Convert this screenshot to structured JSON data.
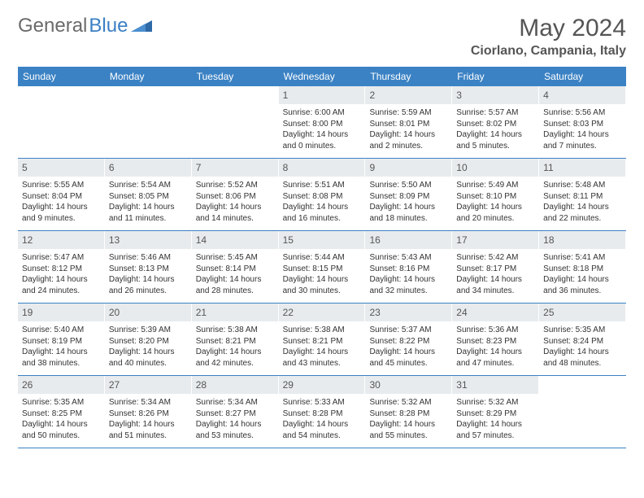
{
  "logo": {
    "text_gray": "General",
    "text_blue": "Blue"
  },
  "title": "May 2024",
  "location": "Ciorlano, Campania, Italy",
  "colors": {
    "header_bg": "#3b82c4",
    "header_text": "#ffffff",
    "daynum_bg": "#e8ebed",
    "border": "#3b82c4",
    "logo_gray": "#6b6b6b",
    "logo_blue": "#3b7fc4"
  },
  "dow": [
    "Sunday",
    "Monday",
    "Tuesday",
    "Wednesday",
    "Thursday",
    "Friday",
    "Saturday"
  ],
  "weeks": [
    [
      {
        "n": "",
        "sr": "",
        "ss": "",
        "dl": ""
      },
      {
        "n": "",
        "sr": "",
        "ss": "",
        "dl": ""
      },
      {
        "n": "",
        "sr": "",
        "ss": "",
        "dl": ""
      },
      {
        "n": "1",
        "sr": "Sunrise: 6:00 AM",
        "ss": "Sunset: 8:00 PM",
        "dl": "Daylight: 14 hours and 0 minutes."
      },
      {
        "n": "2",
        "sr": "Sunrise: 5:59 AM",
        "ss": "Sunset: 8:01 PM",
        "dl": "Daylight: 14 hours and 2 minutes."
      },
      {
        "n": "3",
        "sr": "Sunrise: 5:57 AM",
        "ss": "Sunset: 8:02 PM",
        "dl": "Daylight: 14 hours and 5 minutes."
      },
      {
        "n": "4",
        "sr": "Sunrise: 5:56 AM",
        "ss": "Sunset: 8:03 PM",
        "dl": "Daylight: 14 hours and 7 minutes."
      }
    ],
    [
      {
        "n": "5",
        "sr": "Sunrise: 5:55 AM",
        "ss": "Sunset: 8:04 PM",
        "dl": "Daylight: 14 hours and 9 minutes."
      },
      {
        "n": "6",
        "sr": "Sunrise: 5:54 AM",
        "ss": "Sunset: 8:05 PM",
        "dl": "Daylight: 14 hours and 11 minutes."
      },
      {
        "n": "7",
        "sr": "Sunrise: 5:52 AM",
        "ss": "Sunset: 8:06 PM",
        "dl": "Daylight: 14 hours and 14 minutes."
      },
      {
        "n": "8",
        "sr": "Sunrise: 5:51 AM",
        "ss": "Sunset: 8:08 PM",
        "dl": "Daylight: 14 hours and 16 minutes."
      },
      {
        "n": "9",
        "sr": "Sunrise: 5:50 AM",
        "ss": "Sunset: 8:09 PM",
        "dl": "Daylight: 14 hours and 18 minutes."
      },
      {
        "n": "10",
        "sr": "Sunrise: 5:49 AM",
        "ss": "Sunset: 8:10 PM",
        "dl": "Daylight: 14 hours and 20 minutes."
      },
      {
        "n": "11",
        "sr": "Sunrise: 5:48 AM",
        "ss": "Sunset: 8:11 PM",
        "dl": "Daylight: 14 hours and 22 minutes."
      }
    ],
    [
      {
        "n": "12",
        "sr": "Sunrise: 5:47 AM",
        "ss": "Sunset: 8:12 PM",
        "dl": "Daylight: 14 hours and 24 minutes."
      },
      {
        "n": "13",
        "sr": "Sunrise: 5:46 AM",
        "ss": "Sunset: 8:13 PM",
        "dl": "Daylight: 14 hours and 26 minutes."
      },
      {
        "n": "14",
        "sr": "Sunrise: 5:45 AM",
        "ss": "Sunset: 8:14 PM",
        "dl": "Daylight: 14 hours and 28 minutes."
      },
      {
        "n": "15",
        "sr": "Sunrise: 5:44 AM",
        "ss": "Sunset: 8:15 PM",
        "dl": "Daylight: 14 hours and 30 minutes."
      },
      {
        "n": "16",
        "sr": "Sunrise: 5:43 AM",
        "ss": "Sunset: 8:16 PM",
        "dl": "Daylight: 14 hours and 32 minutes."
      },
      {
        "n": "17",
        "sr": "Sunrise: 5:42 AM",
        "ss": "Sunset: 8:17 PM",
        "dl": "Daylight: 14 hours and 34 minutes."
      },
      {
        "n": "18",
        "sr": "Sunrise: 5:41 AM",
        "ss": "Sunset: 8:18 PM",
        "dl": "Daylight: 14 hours and 36 minutes."
      }
    ],
    [
      {
        "n": "19",
        "sr": "Sunrise: 5:40 AM",
        "ss": "Sunset: 8:19 PM",
        "dl": "Daylight: 14 hours and 38 minutes."
      },
      {
        "n": "20",
        "sr": "Sunrise: 5:39 AM",
        "ss": "Sunset: 8:20 PM",
        "dl": "Daylight: 14 hours and 40 minutes."
      },
      {
        "n": "21",
        "sr": "Sunrise: 5:38 AM",
        "ss": "Sunset: 8:21 PM",
        "dl": "Daylight: 14 hours and 42 minutes."
      },
      {
        "n": "22",
        "sr": "Sunrise: 5:38 AM",
        "ss": "Sunset: 8:21 PM",
        "dl": "Daylight: 14 hours and 43 minutes."
      },
      {
        "n": "23",
        "sr": "Sunrise: 5:37 AM",
        "ss": "Sunset: 8:22 PM",
        "dl": "Daylight: 14 hours and 45 minutes."
      },
      {
        "n": "24",
        "sr": "Sunrise: 5:36 AM",
        "ss": "Sunset: 8:23 PM",
        "dl": "Daylight: 14 hours and 47 minutes."
      },
      {
        "n": "25",
        "sr": "Sunrise: 5:35 AM",
        "ss": "Sunset: 8:24 PM",
        "dl": "Daylight: 14 hours and 48 minutes."
      }
    ],
    [
      {
        "n": "26",
        "sr": "Sunrise: 5:35 AM",
        "ss": "Sunset: 8:25 PM",
        "dl": "Daylight: 14 hours and 50 minutes."
      },
      {
        "n": "27",
        "sr": "Sunrise: 5:34 AM",
        "ss": "Sunset: 8:26 PM",
        "dl": "Daylight: 14 hours and 51 minutes."
      },
      {
        "n": "28",
        "sr": "Sunrise: 5:34 AM",
        "ss": "Sunset: 8:27 PM",
        "dl": "Daylight: 14 hours and 53 minutes."
      },
      {
        "n": "29",
        "sr": "Sunrise: 5:33 AM",
        "ss": "Sunset: 8:28 PM",
        "dl": "Daylight: 14 hours and 54 minutes."
      },
      {
        "n": "30",
        "sr": "Sunrise: 5:32 AM",
        "ss": "Sunset: 8:28 PM",
        "dl": "Daylight: 14 hours and 55 minutes."
      },
      {
        "n": "31",
        "sr": "Sunrise: 5:32 AM",
        "ss": "Sunset: 8:29 PM",
        "dl": "Daylight: 14 hours and 57 minutes."
      },
      {
        "n": "",
        "sr": "",
        "ss": "",
        "dl": ""
      }
    ]
  ]
}
